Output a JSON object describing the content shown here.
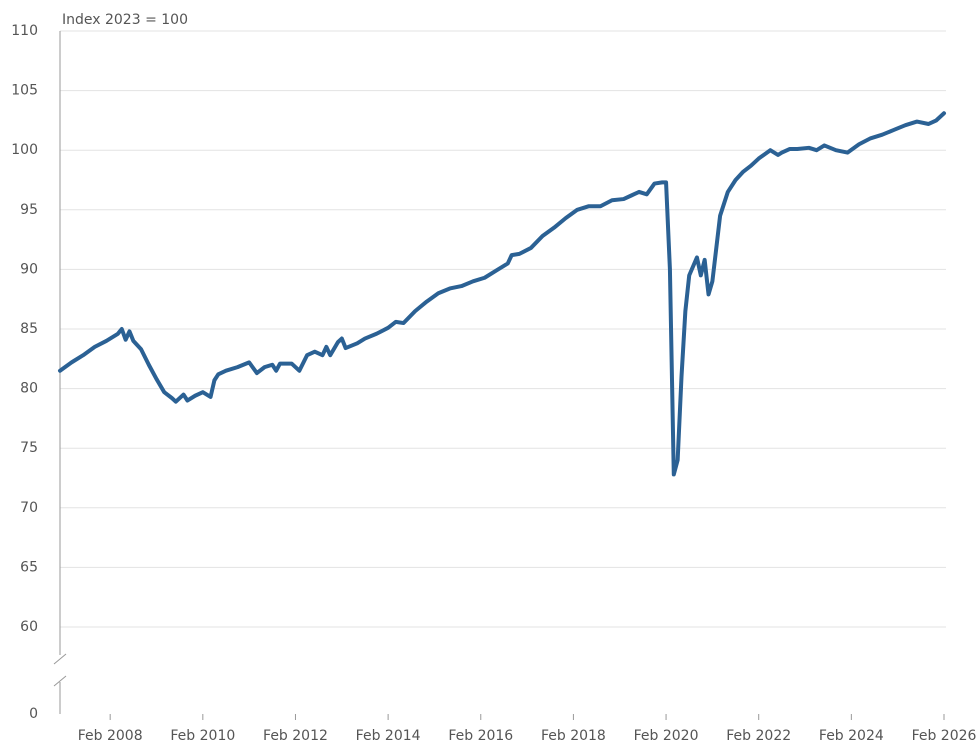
{
  "chart_data": {
    "type": "line",
    "subtitle": "Index 2023 = 100",
    "x": [
      "2007-01",
      "2007-04",
      "2007-07",
      "2007-10",
      "2008-01",
      "2008-04",
      "2008-05",
      "2008-06",
      "2008-07",
      "2008-08",
      "2008-10",
      "2008-12",
      "2009-02",
      "2009-04",
      "2009-06",
      "2009-07",
      "2009-09",
      "2009-10",
      "2009-12",
      "2010-02",
      "2010-04",
      "2010-05",
      "2010-06",
      "2010-08",
      "2010-11",
      "2011-02",
      "2011-04",
      "2011-06",
      "2011-08",
      "2011-09",
      "2011-10",
      "2012-01",
      "2012-03",
      "2012-05",
      "2012-07",
      "2012-09",
      "2012-10",
      "2012-11",
      "2013-01",
      "2013-02",
      "2013-03",
      "2013-06",
      "2013-08",
      "2013-11",
      "2014-02",
      "2014-04",
      "2014-06",
      "2014-09",
      "2014-12",
      "2015-03",
      "2015-06",
      "2015-09",
      "2015-12",
      "2016-03",
      "2016-06",
      "2016-09",
      "2016-10",
      "2016-12",
      "2017-03",
      "2017-06",
      "2017-09",
      "2017-12",
      "2018-03",
      "2018-06",
      "2018-09",
      "2018-12",
      "2019-03",
      "2019-05",
      "2019-07",
      "2019-09",
      "2019-11",
      "2020-01",
      "2020-02",
      "2020-03",
      "2020-04",
      "2020-05",
      "2020-06",
      "2020-07",
      "2020-08",
      "2020-10",
      "2020-11",
      "2020-12",
      "2021-01",
      "2021-02",
      "2021-04",
      "2021-06",
      "2021-08",
      "2021-10",
      "2021-12",
      "2022-02",
      "2022-05",
      "2022-07",
      "2022-08",
      "2022-10",
      "2022-12",
      "2023-03",
      "2023-05",
      "2023-07",
      "2023-10",
      "2024-01",
      "2024-04",
      "2024-07",
      "2024-10",
      "2025-01",
      "2025-04",
      "2025-07",
      "2025-10",
      "2025-12",
      "2026-02"
    ],
    "values": [
      81.5,
      82.2,
      82.8,
      83.5,
      84.0,
      84.6,
      85.0,
      84.1,
      84.8,
      84.0,
      83.3,
      82.0,
      80.8,
      79.7,
      79.2,
      78.9,
      79.5,
      79.0,
      79.4,
      79.7,
      79.3,
      80.7,
      81.2,
      81.5,
      81.8,
      82.2,
      81.3,
      81.8,
      82.0,
      81.5,
      82.1,
      82.1,
      81.5,
      82.8,
      83.1,
      82.8,
      83.5,
      82.8,
      83.9,
      84.2,
      83.4,
      83.8,
      84.2,
      84.6,
      85.1,
      85.6,
      85.5,
      86.5,
      87.3,
      88.0,
      88.4,
      88.6,
      89.0,
      89.3,
      89.9,
      90.5,
      91.2,
      91.3,
      91.8,
      92.8,
      93.5,
      94.3,
      95.0,
      95.3,
      95.3,
      95.8,
      95.9,
      96.2,
      96.5,
      96.3,
      97.2,
      97.3,
      97.3,
      90.0,
      72.8,
      74.0,
      81.0,
      86.5,
      89.5,
      91.0,
      89.5,
      90.8,
      87.9,
      89.0,
      94.5,
      96.5,
      97.5,
      98.2,
      98.7,
      99.3,
      100.0,
      99.6,
      99.8,
      100.1,
      100.1,
      100.2,
      100.0,
      100.4,
      100.0,
      99.8,
      100.5,
      101.0,
      101.3,
      101.7,
      102.1,
      102.4,
      102.2,
      102.5,
      103.1
    ],
    "color": "#2b6194",
    "xlim": [
      "2007-01",
      "2026-02"
    ],
    "xticks": [
      {
        "value": "2008-02",
        "label": "Feb 2008"
      },
      {
        "value": "2010-02",
        "label": "Feb 2010"
      },
      {
        "value": "2012-02",
        "label": "Feb 2012"
      },
      {
        "value": "2014-02",
        "label": "Feb 2014"
      },
      {
        "value": "2016-02",
        "label": "Feb 2016"
      },
      {
        "value": "2018-02",
        "label": "Feb 2018"
      },
      {
        "value": "2020-02",
        "label": "Feb 2020"
      },
      {
        "value": "2022-02",
        "label": "Feb 2022"
      },
      {
        "value": "2024-02",
        "label": "Feb 2024"
      },
      {
        "value": "2026-02",
        "label": "Feb 2026"
      }
    ],
    "ylim": [
      0,
      110
    ],
    "yticks": [
      0,
      60,
      65,
      70,
      75,
      80,
      85,
      90,
      95,
      100,
      105,
      110
    ],
    "axis_break": true,
    "grid": true
  }
}
